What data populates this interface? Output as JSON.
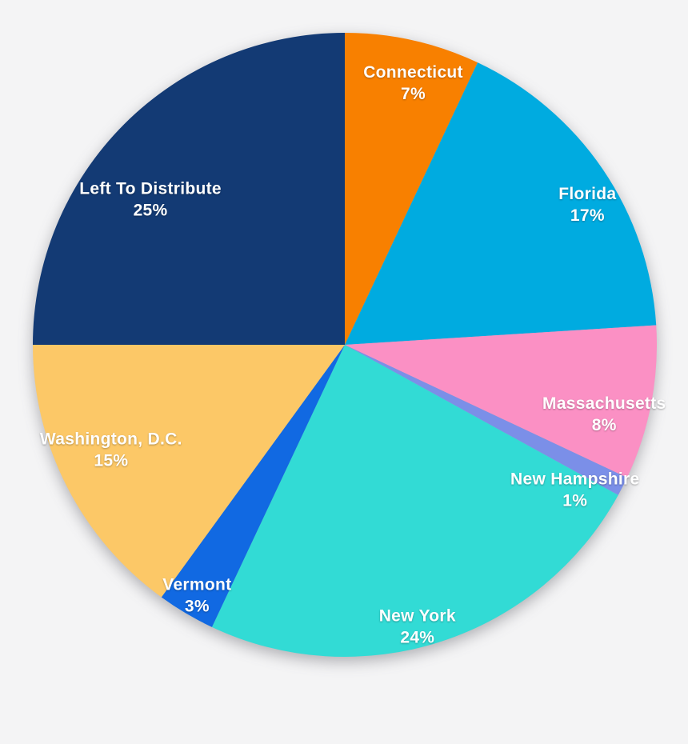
{
  "background_color": "#F4F4F5",
  "label_text_color": "#FFFFFF",
  "chart_data": {
    "type": "pie",
    "legend_position": "none",
    "start_angle_deg": 0,
    "direction": "clockwise",
    "labels_inside_slices": true,
    "slices": [
      {
        "label": "Connecticut",
        "value": 7,
        "percent_label": "7%",
        "color": "#F88000"
      },
      {
        "label": "Florida",
        "value": 17,
        "percent_label": "17%",
        "color": "#00ABE0"
      },
      {
        "label": "Massachusetts",
        "value": 8,
        "percent_label": "8%",
        "color": "#FB90C4"
      },
      {
        "label": "New Hampshire",
        "value": 1,
        "percent_label": "1%",
        "color": "#7B8FE8"
      },
      {
        "label": "New York",
        "value": 24,
        "percent_label": "24%",
        "color": "#32DBD5"
      },
      {
        "label": "Vermont",
        "value": 3,
        "percent_label": "3%",
        "color": "#1169E2"
      },
      {
        "label": "Washington, D.C.",
        "value": 15,
        "percent_label": "15%",
        "color": "#FCC867"
      },
      {
        "label": "Left To Distribute",
        "value": 25,
        "percent_label": "25%",
        "color": "#133A74"
      }
    ]
  }
}
